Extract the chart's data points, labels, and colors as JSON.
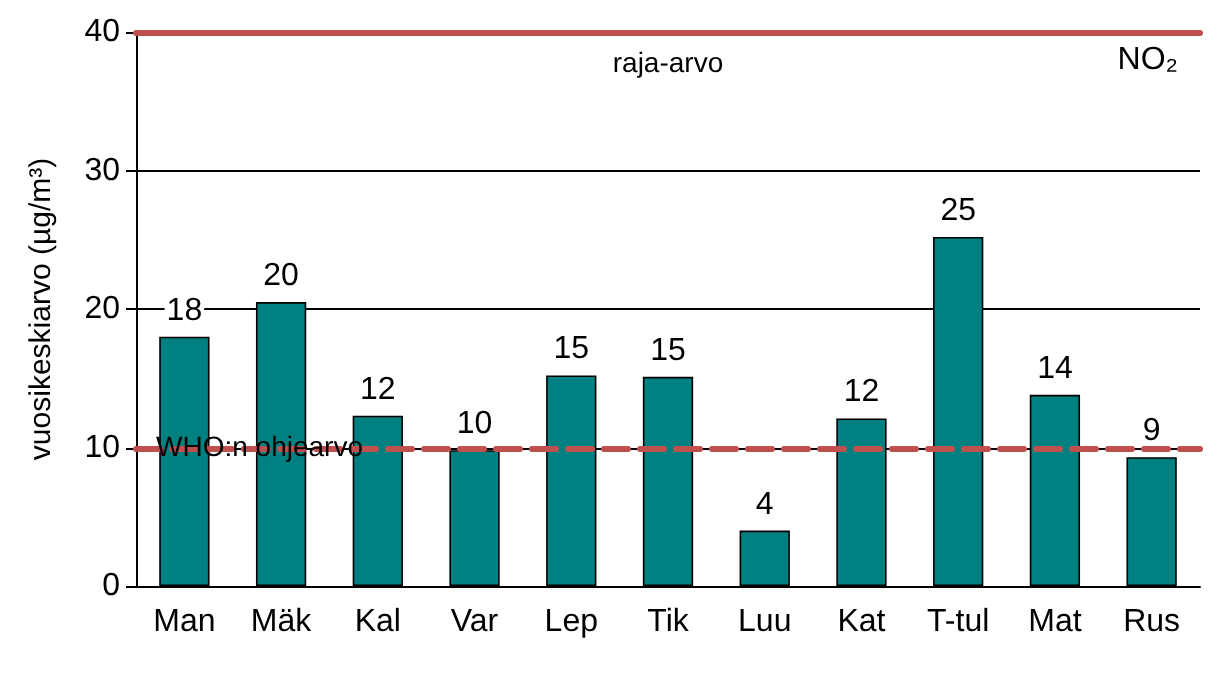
{
  "chart_data": {
    "type": "bar",
    "ylabel": "vuosikeskiarvo (µg/m³)",
    "categories": [
      "Man",
      "Mäk",
      "Kal",
      "Var",
      "Lep",
      "Tik",
      "Luu",
      "Kat",
      "T-tul",
      "Mat",
      "Rus"
    ],
    "values": [
      18,
      20.5,
      12.3,
      9.8,
      15.2,
      15.1,
      4,
      12.1,
      25.2,
      13.8,
      9.3
    ],
    "value_labels": [
      "18",
      "20",
      "12",
      "10",
      "15",
      "15",
      "4",
      "12",
      "25",
      "14",
      "9"
    ],
    "color": "#008080",
    "ylim": [
      0,
      40
    ],
    "yticks": [
      0,
      10,
      20,
      30,
      40
    ],
    "grid": "y",
    "ref_lines": [
      {
        "axis": "y",
        "value": 40,
        "label": "raja-arvo",
        "color": "#c0504d",
        "line_style": "solid"
      },
      {
        "axis": "y",
        "value": 10,
        "label": "WHO:n ohjearvo",
        "color": "#c0504d",
        "line_style": "dashed"
      }
    ],
    "annotations": [
      "NO₂"
    ]
  }
}
